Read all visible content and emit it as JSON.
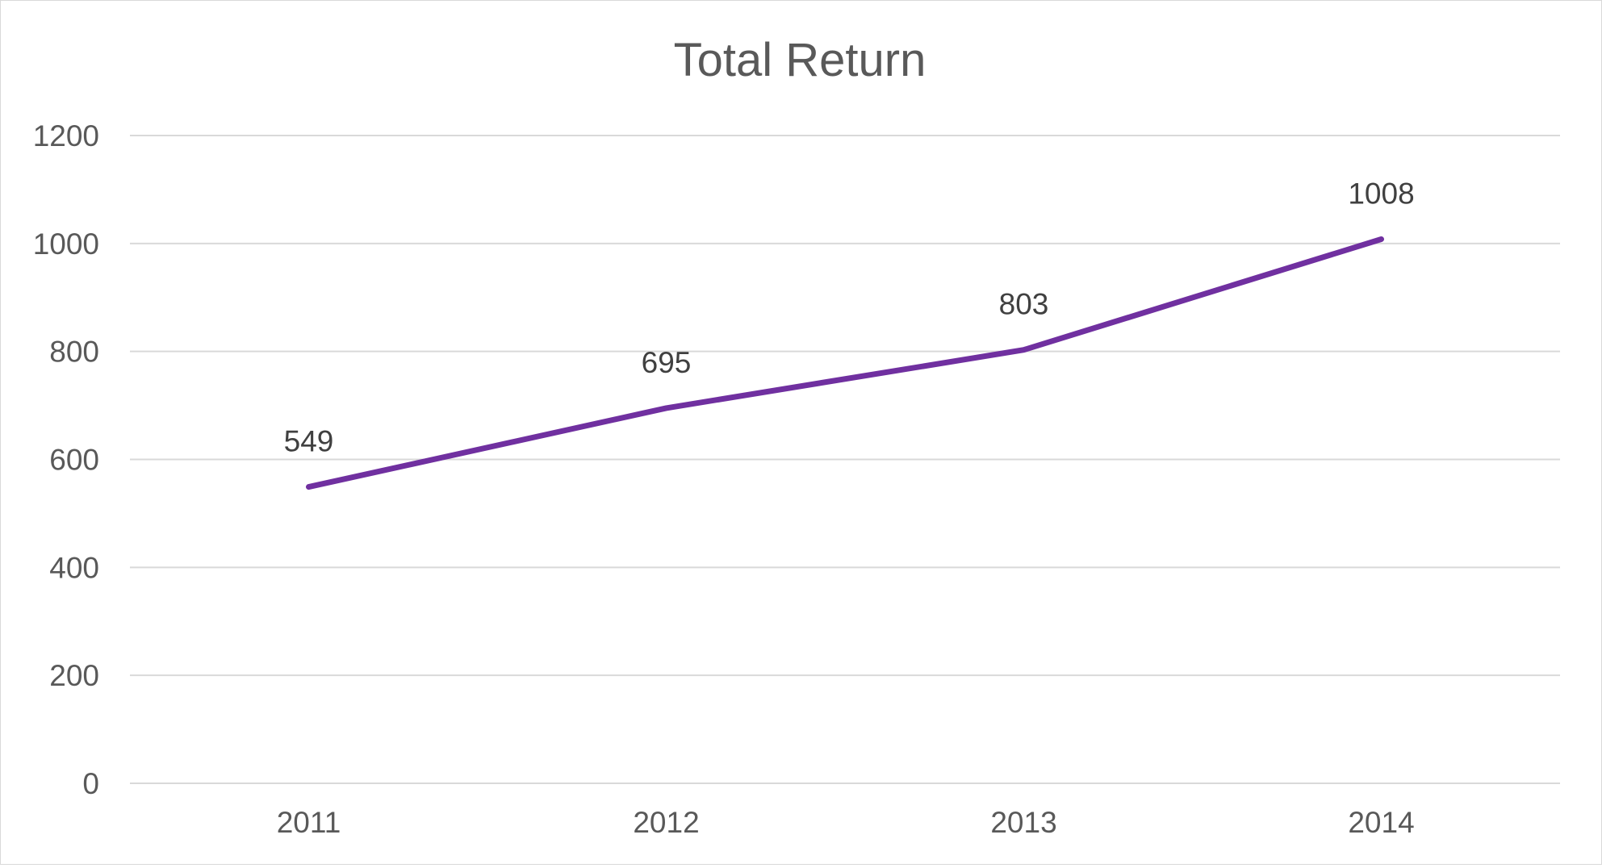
{
  "chart_data": {
    "type": "line",
    "title": "Total Return",
    "xlabel": "",
    "ylabel": "",
    "categories": [
      "2011",
      "2012",
      "2013",
      "2014"
    ],
    "series": [
      {
        "values": [
          549,
          695,
          803,
          1008
        ]
      }
    ],
    "data_labels": [
      "549",
      "695",
      "803",
      "1008"
    ],
    "ylim": [
      0,
      1200
    ],
    "yticks": [
      0,
      200,
      400,
      600,
      800,
      1000,
      1200
    ],
    "ytick_labels": [
      "0",
      "200",
      "400",
      "600",
      "800",
      "1000",
      "1200"
    ],
    "grid": true,
    "legend": "none",
    "colors": {
      "line": "#7030a0",
      "grid": "#d9d9d9",
      "text": "#595959",
      "label": "#404040"
    }
  }
}
